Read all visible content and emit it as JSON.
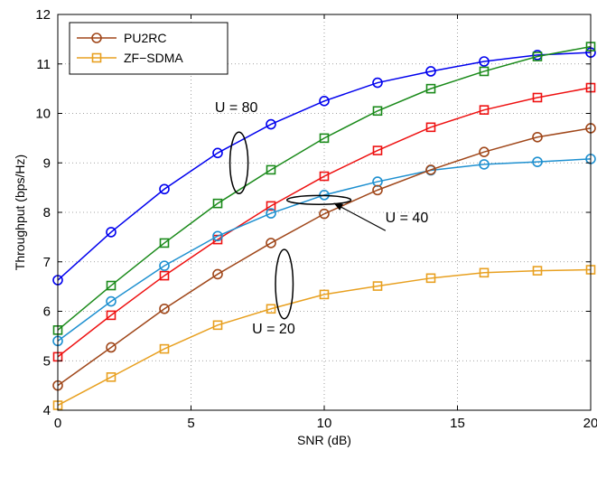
{
  "chart_data": {
    "type": "line",
    "xlabel": "SNR (dB)",
    "ylabel": "Throughput (bps/Hz)",
    "xlim": [
      0,
      20
    ],
    "ylim": [
      4,
      12
    ],
    "xticks": [
      0,
      5,
      10,
      15,
      20
    ],
    "yticks": [
      4,
      5,
      6,
      7,
      8,
      9,
      10,
      11,
      12
    ],
    "grid": true,
    "legend_placement": "top-left",
    "legend": [
      {
        "label": "PU2RC",
        "marker": "circle",
        "color": "#a0471a"
      },
      {
        "label": "ZF−SDMA",
        "marker": "square",
        "color": "#e8a020"
      }
    ],
    "x": [
      0,
      2,
      4,
      6,
      8,
      10,
      12,
      14,
      16,
      18,
      20
    ],
    "series": [
      {
        "marker": "circle",
        "color": "#0000ee",
        "values": [
          6.63,
          7.6,
          8.47,
          9.2,
          9.78,
          10.25,
          10.62,
          10.85,
          11.05,
          11.18,
          11.23
        ]
      },
      {
        "marker": "square",
        "color": "#1a8a1a",
        "values": [
          5.62,
          6.52,
          7.38,
          8.18,
          8.86,
          9.5,
          10.05,
          10.5,
          10.85,
          11.15,
          11.35
        ]
      },
      {
        "marker": "square",
        "color": "#ee1111",
        "values": [
          5.08,
          5.92,
          6.72,
          7.45,
          8.13,
          8.73,
          9.25,
          9.72,
          10.07,
          10.32,
          10.52
        ]
      },
      {
        "marker": "circle",
        "color": "#1e90d0",
        "values": [
          5.4,
          6.2,
          6.92,
          7.52,
          7.98,
          8.35,
          8.62,
          8.85,
          8.97,
          9.02,
          9.08
        ]
      },
      {
        "marker": "circle",
        "color": "#a0471a",
        "values": [
          4.5,
          5.27,
          6.05,
          6.75,
          7.38,
          7.97,
          8.45,
          8.86,
          9.22,
          9.52,
          9.7
        ]
      },
      {
        "marker": "square",
        "color": "#e8a020",
        "values": [
          4.1,
          4.67,
          5.24,
          5.72,
          6.05,
          6.34,
          6.51,
          6.67,
          6.78,
          6.82,
          6.84
        ]
      }
    ],
    "annotations": [
      {
        "text": "U = 80",
        "x": 6.7,
        "y": 10.03,
        "ellipse_center": [
          6.8,
          9.0
        ],
        "ellipse_rx": 0.34,
        "ellipse_ry": 0.62
      },
      {
        "text": "U = 40",
        "x": 13.1,
        "y": 7.8,
        "ellipse_center": [
          9.8,
          8.25
        ],
        "ellipse_rx": 1.2,
        "ellipse_ry": 0.09,
        "arrow_from": [
          12.3,
          7.63
        ],
        "arrow_to": [
          10.38,
          8.18
        ]
      },
      {
        "text": "U = 20",
        "x": 8.1,
        "y": 5.55,
        "ellipse_center": [
          8.5,
          6.55
        ],
        "ellipse_rx": 0.33,
        "ellipse_ry": 0.7
      }
    ]
  }
}
